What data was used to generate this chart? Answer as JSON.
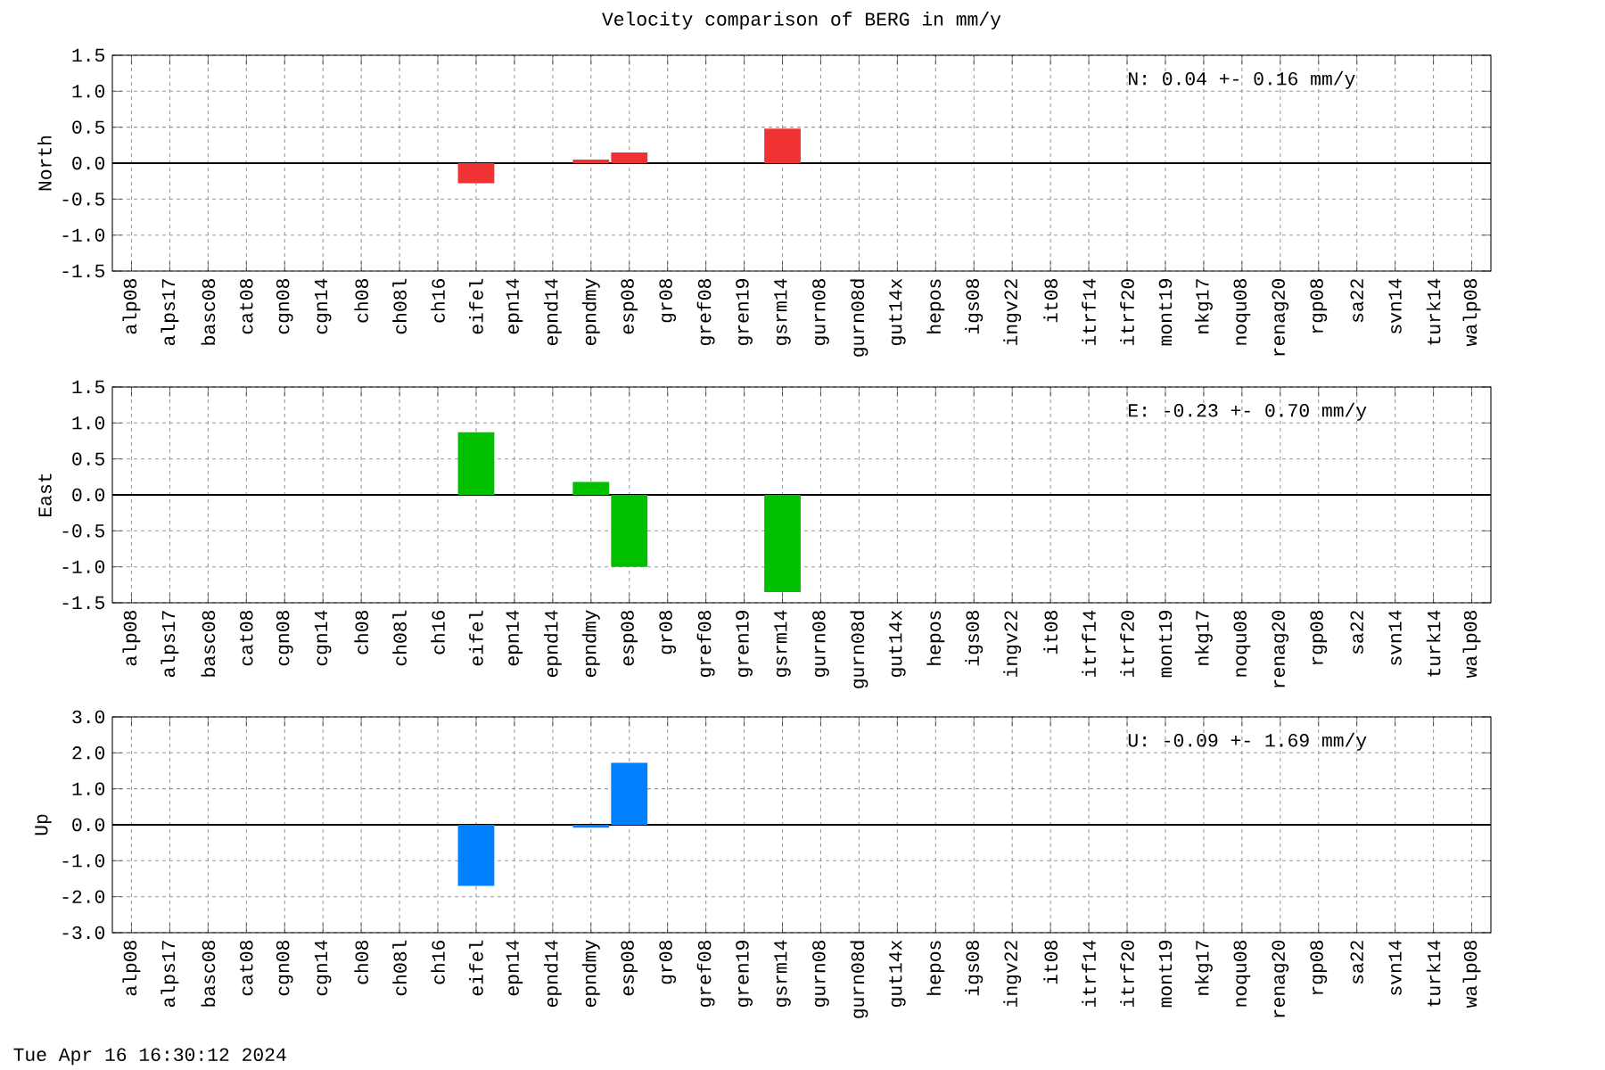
{
  "chart_data": [
    {
      "type": "bar",
      "title": "Velocity comparison of BERG in mm/y",
      "ylabel": "North",
      "categories": [
        "alp08",
        "alps17",
        "basc08",
        "cat08",
        "cgn08",
        "cgn14",
        "ch08",
        "ch08l",
        "ch16",
        "eifel",
        "epn14",
        "epnd14",
        "epndmy",
        "esp08",
        "gr08",
        "gref08",
        "gren19",
        "gsrm14",
        "gurn08",
        "gurn08d",
        "gut14x",
        "hepos",
        "igs08",
        "ingv22",
        "it08",
        "itrf14",
        "itrf20",
        "mont19",
        "nkg17",
        "noqu08",
        "renag20",
        "rgp08",
        "sa22",
        "svn14",
        "turk14",
        "walp08"
      ],
      "values": [
        null,
        null,
        null,
        null,
        null,
        null,
        null,
        null,
        null,
        -0.28,
        null,
        null,
        0.05,
        0.15,
        null,
        null,
        null,
        0.48,
        null,
        null,
        null,
        null,
        null,
        null,
        null,
        null,
        null,
        null,
        null,
        null,
        null,
        null,
        null,
        null,
        null,
        null
      ],
      "color": "#f03232",
      "ylim": [
        -1.5,
        1.5
      ],
      "yticks": [
        -1.5,
        {
          "value": -1.0,
          "label": "-1.0"
        },
        -0.5,
        {
          "value": 0,
          "label": "0.0"
        },
        0.5,
        {
          "value": 1.0,
          "label": "1.0"
        },
        1.5
      ],
      "grid": true,
      "ref_lines": [
        {
          "axis": "y",
          "value": 0,
          "color": "#000000"
        }
      ],
      "annotations": [
        "N:   0.04 +-  0.16 mm/y"
      ]
    },
    {
      "type": "bar",
      "ylabel": "East",
      "categories": [
        "alp08",
        "alps17",
        "basc08",
        "cat08",
        "cgn08",
        "cgn14",
        "ch08",
        "ch08l",
        "ch16",
        "eifel",
        "epn14",
        "epnd14",
        "epndmy",
        "esp08",
        "gr08",
        "gref08",
        "gren19",
        "gsrm14",
        "gurn08",
        "gurn08d",
        "gut14x",
        "hepos",
        "igs08",
        "ingv22",
        "it08",
        "itrf14",
        "itrf20",
        "mont19",
        "nkg17",
        "noqu08",
        "renag20",
        "rgp08",
        "sa22",
        "svn14",
        "turk14",
        "walp08"
      ],
      "values": [
        null,
        null,
        null,
        null,
        null,
        null,
        null,
        null,
        null,
        0.87,
        null,
        null,
        0.18,
        -1.0,
        null,
        null,
        null,
        -1.35,
        null,
        null,
        null,
        null,
        null,
        null,
        null,
        null,
        null,
        null,
        null,
        null,
        null,
        null,
        null,
        null,
        null,
        null
      ],
      "color": "#00c000",
      "ylim": [
        -1.5,
        1.5
      ],
      "yticks": [
        -1.5,
        {
          "value": -1.0,
          "label": "-1.0"
        },
        -0.5,
        {
          "value": 0,
          "label": "0.0"
        },
        0.5,
        {
          "value": 1.0,
          "label": "1.0"
        },
        1.5
      ],
      "grid": true,
      "ref_lines": [
        {
          "axis": "y",
          "value": 0,
          "color": "#000000"
        }
      ],
      "annotations": [
        "E:  -0.23 +-  0.70 mm/y"
      ]
    },
    {
      "type": "bar",
      "ylabel": "Up",
      "categories": [
        "alp08",
        "alps17",
        "basc08",
        "cat08",
        "cgn08",
        "cgn14",
        "ch08",
        "ch08l",
        "ch16",
        "eifel",
        "epn14",
        "epnd14",
        "epndmy",
        "esp08",
        "gr08",
        "gref08",
        "gren19",
        "gsrm14",
        "gurn08",
        "gurn08d",
        "gut14x",
        "hepos",
        "igs08",
        "ingv22",
        "it08",
        "itrf14",
        "itrf20",
        "mont19",
        "nkg17",
        "noqu08",
        "renag20",
        "rgp08",
        "sa22",
        "svn14",
        "turk14",
        "walp08"
      ],
      "values": [
        null,
        null,
        null,
        null,
        null,
        null,
        null,
        null,
        null,
        -1.7,
        null,
        null,
        -0.08,
        1.72,
        null,
        null,
        null,
        null,
        null,
        null,
        null,
        null,
        null,
        null,
        null,
        null,
        null,
        null,
        null,
        null,
        null,
        null,
        null,
        null,
        null,
        null
      ],
      "color": "#0080ff",
      "ylim": [
        -3,
        3
      ],
      "yticks": [
        {
          "value": -3,
          "label": "-3.0"
        },
        {
          "value": -2,
          "label": "-2.0"
        },
        {
          "value": -1,
          "label": "-1.0"
        },
        {
          "value": 0,
          "label": "0.0"
        },
        {
          "value": 1,
          "label": "1.0"
        },
        {
          "value": 2,
          "label": "2.0"
        },
        {
          "value": 3,
          "label": "3.0"
        }
      ],
      "grid": true,
      "ref_lines": [
        {
          "axis": "y",
          "value": 0,
          "color": "#000000"
        }
      ],
      "annotations": [
        "U:  -0.09 +-  1.69 mm/y",
        "Tue Apr 16 16:30:12 2024"
      ]
    }
  ]
}
